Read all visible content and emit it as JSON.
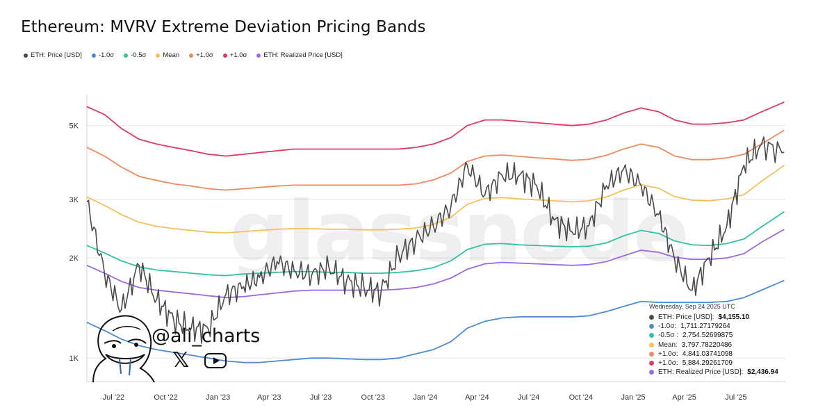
{
  "title": "Ethereum: MVRV Extreme Deviation Pricing Bands",
  "legend": [
    {
      "label": "ETH: Price [USD]",
      "color": "#4a4a4a"
    },
    {
      "label": "-1.0σ",
      "color": "#4b8bd4"
    },
    {
      "label": "-0.5σ",
      "color": "#2ec4a0"
    },
    {
      "label": "Mean",
      "color": "#f2c15a"
    },
    {
      "label": "+1.0σ",
      "color": "#ef8a5e"
    },
    {
      "label": "+1.0σ",
      "color": "#dc3a5e"
    },
    {
      "label": "ETH: Realized Price [USD]",
      "color": "#9a6be0"
    }
  ],
  "watermark": "glassnode",
  "brand": {
    "handle": "@ali_charts",
    "icons": [
      "x-logo-icon",
      "youtube-icon"
    ],
    "avatar": "cartoon-face-avatar"
  },
  "tooltip": {
    "date": "Wednesday, Sep 24 2025 UTC",
    "rows": [
      {
        "label": "ETH: Price [USD]:",
        "value": "$4,155.10",
        "bold": true,
        "color": "#4a4a4a"
      },
      {
        "label": "-1.0σ:",
        "value": "1,711.27179264",
        "bold": false,
        "color": "#4b8bd4"
      },
      {
        "label": "-0.5σ :",
        "value": "2,754.52699875",
        "bold": false,
        "color": "#2ec4a0"
      },
      {
        "label": "Mean:",
        "value": "3,797.78220486",
        "bold": false,
        "color": "#f2c15a"
      },
      {
        "label": "+1.0σ:",
        "value": "4,841.03741098",
        "bold": false,
        "color": "#ef8a5e"
      },
      {
        "label": "+1.0σ:",
        "value": "5,884.29261709",
        "bold": false,
        "color": "#dc3a5e"
      },
      {
        "label": "ETH: Realized Price [USD]:",
        "value": "$2,436.94",
        "bold": true,
        "color": "#9a6be0"
      }
    ]
  },
  "chart_data": {
    "type": "line",
    "y_scale": "log",
    "ylim": [
      850,
      6200
    ],
    "xlim": [
      "2022-05-15",
      "2025-09-26"
    ],
    "y_ticks": [
      {
        "value": 1000,
        "label": "1K"
      },
      {
        "value": 2000,
        "label": "2K"
      },
      {
        "value": 3000,
        "label": "3K"
      },
      {
        "value": 5000,
        "label": "5K"
      }
    ],
    "x_ticks": [
      {
        "date": "2022-07-01",
        "label": "Jul '22"
      },
      {
        "date": "2022-10-01",
        "label": "Oct '22"
      },
      {
        "date": "2023-01-01",
        "label": "Jan '23"
      },
      {
        "date": "2023-04-01",
        "label": "Apr '23"
      },
      {
        "date": "2023-07-01",
        "label": "Jul '23"
      },
      {
        "date": "2023-10-01",
        "label": "Oct '23"
      },
      {
        "date": "2024-01-01",
        "label": "Jan '24"
      },
      {
        "date": "2024-04-01",
        "label": "Apr '24"
      },
      {
        "date": "2024-07-01",
        "label": "Jul '24"
      },
      {
        "date": "2024-10-01",
        "label": "Oct '24"
      },
      {
        "date": "2025-01-01",
        "label": "Jan '25"
      },
      {
        "date": "2025-04-01",
        "label": "Apr '25"
      },
      {
        "date": "2025-07-01",
        "label": "Jul '25"
      }
    ],
    "x": [
      "2022-05-15",
      "2022-06-15",
      "2022-07-15",
      "2022-08-15",
      "2022-09-15",
      "2022-10-15",
      "2022-11-15",
      "2022-12-15",
      "2023-01-15",
      "2023-02-15",
      "2023-03-15",
      "2023-04-15",
      "2023-05-15",
      "2023-06-15",
      "2023-07-15",
      "2023-08-15",
      "2023-09-15",
      "2023-10-15",
      "2023-11-15",
      "2023-12-15",
      "2024-01-15",
      "2024-02-15",
      "2024-03-15",
      "2024-04-15",
      "2024-05-15",
      "2024-06-15",
      "2024-07-15",
      "2024-08-15",
      "2024-09-15",
      "2024-10-15",
      "2024-11-15",
      "2024-12-15",
      "2025-01-15",
      "2025-02-15",
      "2025-03-15",
      "2025-04-15",
      "2025-05-15",
      "2025-06-15",
      "2025-07-15",
      "2025-08-15",
      "2025-09-24"
    ],
    "series": [
      {
        "name": "+1.0σ",
        "color": "#dc3a5e",
        "values": [
          5700,
          5400,
          4900,
          4550,
          4400,
          4300,
          4200,
          4100,
          4050,
          4100,
          4150,
          4200,
          4250,
          4250,
          4250,
          4250,
          4250,
          4250,
          4250,
          4300,
          4400,
          4600,
          5000,
          5200,
          5200,
          5150,
          5100,
          5050,
          5000,
          5050,
          5200,
          5450,
          5650,
          5500,
          5200,
          5050,
          5050,
          5100,
          5200,
          5500,
          5884
        ]
      },
      {
        "name": "+1.0σ",
        "color": "#ef8a5e",
        "values": [
          4300,
          4050,
          3750,
          3520,
          3420,
          3340,
          3290,
          3230,
          3200,
          3230,
          3260,
          3290,
          3310,
          3310,
          3310,
          3310,
          3310,
          3310,
          3310,
          3340,
          3430,
          3600,
          3900,
          4050,
          4080,
          4040,
          4000,
          3970,
          3930,
          3960,
          4070,
          4250,
          4400,
          4300,
          4050,
          3950,
          3950,
          4000,
          4100,
          4400,
          4841
        ]
      },
      {
        "name": "Mean",
        "color": "#f2c15a",
        "values": [
          3050,
          2880,
          2700,
          2560,
          2490,
          2450,
          2420,
          2390,
          2380,
          2400,
          2420,
          2440,
          2450,
          2450,
          2440,
          2440,
          2430,
          2430,
          2440,
          2460,
          2520,
          2650,
          2900,
          3020,
          3040,
          3010,
          2990,
          2970,
          2950,
          2970,
          3050,
          3200,
          3320,
          3240,
          3060,
          2980,
          2970,
          3010,
          3100,
          3400,
          3798
        ]
      },
      {
        "name": "-0.5σ",
        "color": "#2ec4a0",
        "values": [
          2180,
          2070,
          1960,
          1880,
          1840,
          1820,
          1800,
          1780,
          1770,
          1790,
          1800,
          1810,
          1820,
          1820,
          1810,
          1810,
          1800,
          1800,
          1810,
          1830,
          1870,
          1960,
          2120,
          2200,
          2210,
          2190,
          2180,
          2170,
          2160,
          2170,
          2220,
          2330,
          2420,
          2370,
          2250,
          2190,
          2180,
          2210,
          2280,
          2480,
          2755
        ]
      },
      {
        "name": "ETH: Realized Price [USD]",
        "color": "#9a6be0",
        "values": [
          1900,
          1800,
          1700,
          1630,
          1600,
          1580,
          1560,
          1540,
          1520,
          1530,
          1550,
          1570,
          1590,
          1600,
          1600,
          1600,
          1600,
          1600,
          1610,
          1630,
          1670,
          1740,
          1850,
          1920,
          1940,
          1930,
          1920,
          1910,
          1900,
          1910,
          1950,
          2030,
          2110,
          2080,
          2010,
          1980,
          1980,
          2000,
          2060,
          2230,
          2437
        ]
      },
      {
        "name": "-1.0σ",
        "color": "#4b8bd4",
        "values": [
          1280,
          1210,
          1140,
          1090,
          1060,
          1040,
          1020,
          1000,
          980,
          970,
          970,
          980,
          990,
          1000,
          1000,
          995,
          990,
          990,
          1000,
          1030,
          1060,
          1120,
          1230,
          1290,
          1320,
          1330,
          1330,
          1330,
          1330,
          1340,
          1380,
          1430,
          1480,
          1470,
          1470,
          1470,
          1470,
          1480,
          1520,
          1600,
          1711
        ]
      },
      {
        "name": "ETH: Price [USD]",
        "color": "#4a4a4a",
        "values": [
          2950,
          1800,
          1400,
          1900,
          1500,
          1300,
          1230,
          1220,
          1560,
          1640,
          1750,
          1950,
          1830,
          1780,
          1880,
          1700,
          1630,
          1580,
          2050,
          2260,
          2500,
          2850,
          3800,
          3100,
          3550,
          3550,
          3300,
          2600,
          2400,
          2500,
          3300,
          3700,
          3300,
          2700,
          1980,
          1600,
          2000,
          2500,
          3800,
          4400,
          4155
        ]
      }
    ]
  }
}
